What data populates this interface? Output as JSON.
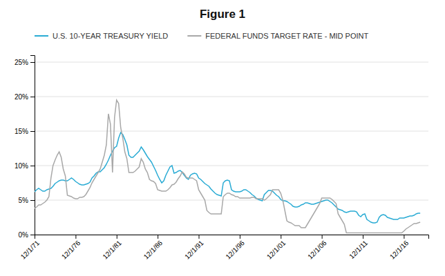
{
  "chart_data": {
    "type": "line",
    "title": "Figure 1",
    "x": [
      1971,
      1971.25,
      1971.5,
      1971.75,
      1972,
      1972.25,
      1972.5,
      1972.75,
      1973,
      1973.25,
      1973.5,
      1973.75,
      1974,
      1974.25,
      1974.5,
      1974.75,
      1975,
      1975.25,
      1975.5,
      1975.75,
      1976,
      1976.25,
      1976.5,
      1976.75,
      1977,
      1977.25,
      1977.5,
      1977.75,
      1978,
      1978.25,
      1978.5,
      1978.75,
      1979,
      1979.25,
      1979.5,
      1979.75,
      1980,
      1980.25,
      1980.5,
      1980.75,
      1981,
      1981.25,
      1981.5,
      1981.75,
      1982,
      1982.25,
      1982.5,
      1982.75,
      1983,
      1983.25,
      1983.5,
      1983.75,
      1984,
      1984.25,
      1984.5,
      1984.75,
      1985,
      1985.25,
      1985.5,
      1985.75,
      1986,
      1986.25,
      1986.5,
      1986.75,
      1987,
      1987.25,
      1987.5,
      1987.75,
      1988,
      1988.25,
      1988.5,
      1988.75,
      1989,
      1989.25,
      1989.5,
      1989.75,
      1990,
      1990.25,
      1990.5,
      1990.75,
      1991,
      1991.25,
      1991.5,
      1991.75,
      1992,
      1992.25,
      1992.5,
      1992.75,
      1993,
      1993.25,
      1993.5,
      1993.75,
      1994,
      1994.25,
      1994.5,
      1994.75,
      1995,
      1995.25,
      1995.5,
      1995.75,
      1996,
      1996.25,
      1996.5,
      1996.75,
      1997,
      1997.25,
      1997.5,
      1997.75,
      1998,
      1998.25,
      1998.5,
      1998.75,
      1999,
      1999.25,
      1999.5,
      1999.75,
      2000,
      2000.25,
      2000.5,
      2000.75,
      2001,
      2001.25,
      2001.5,
      2001.75,
      2002,
      2002.25,
      2002.5,
      2002.75,
      2003,
      2003.25,
      2003.5,
      2003.75,
      2004,
      2004.25,
      2004.5,
      2004.75,
      2005,
      2005.25,
      2005.5,
      2005.75,
      2006,
      2006.25,
      2006.5,
      2006.75,
      2007,
      2007.25,
      2007.5,
      2007.75,
      2008,
      2008.25,
      2008.5,
      2008.75,
      2009,
      2009.25,
      2009.5,
      2009.75,
      2010,
      2010.25,
      2010.5,
      2010.75,
      2011,
      2011.25,
      2011.5,
      2011.75,
      2012,
      2012.25,
      2012.5,
      2012.75,
      2013,
      2013.25,
      2013.5,
      2013.75,
      2014,
      2014.25,
      2014.5,
      2014.75,
      2015,
      2015.25,
      2015.5,
      2015.75,
      2016,
      2016.25,
      2016.5,
      2016.75,
      2017,
      2017.25,
      2017.5,
      2017.75,
      2018
    ],
    "xlim": [
      1971,
      2019
    ],
    "xticks": [
      {
        "value": 1971,
        "label": "12/1/71"
      },
      {
        "value": 1976,
        "label": "12/1/76"
      },
      {
        "value": 1981,
        "label": "12/1/81"
      },
      {
        "value": 1986,
        "label": "12/1/86"
      },
      {
        "value": 1991,
        "label": "12/1/91"
      },
      {
        "value": 1996,
        "label": "12/1/96"
      },
      {
        "value": 2001,
        "label": "12/1/01"
      },
      {
        "value": 2006,
        "label": "12/1/06"
      },
      {
        "value": 2011,
        "label": "12/1/11"
      },
      {
        "value": 2016,
        "label": "12/1/16"
      }
    ],
    "ylim": [
      0,
      0.26
    ],
    "yticks": [
      {
        "value": 0.0,
        "label": "0%"
      },
      {
        "value": 0.05,
        "label": "5%"
      },
      {
        "value": 0.1,
        "label": "10%"
      },
      {
        "value": 0.15,
        "label": "15%"
      },
      {
        "value": 0.2,
        "label": "20%"
      },
      {
        "value": 0.25,
        "label": "25%"
      }
    ],
    "grid": true,
    "legend": "top",
    "series": [
      {
        "name": "U.S. 10-YEAR TREASURY YIELD",
        "color": "#29ABD4",
        "values": [
          0.062,
          0.065,
          0.067,
          0.065,
          0.063,
          0.063,
          0.065,
          0.066,
          0.067,
          0.07,
          0.074,
          0.076,
          0.078,
          0.079,
          0.079,
          0.078,
          0.078,
          0.08,
          0.082,
          0.08,
          0.077,
          0.075,
          0.073,
          0.072,
          0.072,
          0.073,
          0.074,
          0.076,
          0.082,
          0.085,
          0.089,
          0.091,
          0.091,
          0.094,
          0.097,
          0.102,
          0.108,
          0.115,
          0.121,
          0.126,
          0.128,
          0.14,
          0.148,
          0.145,
          0.138,
          0.13,
          0.115,
          0.112,
          0.112,
          0.115,
          0.118,
          0.121,
          0.127,
          0.123,
          0.118,
          0.113,
          0.109,
          0.105,
          0.099,
          0.093,
          0.086,
          0.08,
          0.075,
          0.078,
          0.086,
          0.092,
          0.098,
          0.1,
          0.089,
          0.09,
          0.092,
          0.093,
          0.09,
          0.086,
          0.082,
          0.08,
          0.086,
          0.088,
          0.089,
          0.088,
          0.082,
          0.08,
          0.077,
          0.074,
          0.072,
          0.07,
          0.066,
          0.063,
          0.06,
          0.058,
          0.057,
          0.056,
          0.075,
          0.078,
          0.079,
          0.078,
          0.065,
          0.063,
          0.062,
          0.062,
          0.062,
          0.063,
          0.065,
          0.065,
          0.063,
          0.061,
          0.058,
          0.056,
          0.053,
          0.051,
          0.05,
          0.049,
          0.058,
          0.061,
          0.064,
          0.064,
          0.063,
          0.06,
          0.057,
          0.055,
          0.051,
          0.049,
          0.049,
          0.048,
          0.046,
          0.044,
          0.041,
          0.04,
          0.04,
          0.041,
          0.043,
          0.044,
          0.046,
          0.046,
          0.045,
          0.044,
          0.044,
          0.045,
          0.046,
          0.047,
          0.048,
          0.049,
          0.05,
          0.05,
          0.048,
          0.046,
          0.043,
          0.04,
          0.037,
          0.036,
          0.035,
          0.033,
          0.032,
          0.033,
          0.034,
          0.034,
          0.034,
          0.033,
          0.028,
          0.026,
          0.029,
          0.03,
          0.022,
          0.02,
          0.018,
          0.017,
          0.017,
          0.018,
          0.025,
          0.028,
          0.029,
          0.028,
          0.025,
          0.024,
          0.023,
          0.022,
          0.022,
          0.022,
          0.024,
          0.024,
          0.024,
          0.025,
          0.026,
          0.027,
          0.027,
          0.028,
          0.03,
          0.031,
          0.031
        ]
      },
      {
        "name": "FEDERAL FUNDS TARGET RATE - MID POINT",
        "color": "#A8A8A8",
        "values": [
          0.038,
          0.04,
          0.043,
          0.043,
          0.045,
          0.047,
          0.05,
          0.055,
          0.082,
          0.1,
          0.108,
          0.115,
          0.12,
          0.112,
          0.095,
          0.085,
          0.057,
          0.056,
          0.055,
          0.053,
          0.052,
          0.052,
          0.054,
          0.054,
          0.055,
          0.058,
          0.063,
          0.068,
          0.075,
          0.08,
          0.085,
          0.09,
          0.095,
          0.105,
          0.115,
          0.13,
          0.175,
          0.16,
          0.09,
          0.17,
          0.195,
          0.19,
          0.155,
          0.14,
          0.12,
          0.11,
          0.09,
          0.09,
          0.09,
          0.092,
          0.095,
          0.098,
          0.11,
          0.105,
          0.095,
          0.09,
          0.08,
          0.078,
          0.077,
          0.074,
          0.065,
          0.064,
          0.063,
          0.063,
          0.063,
          0.065,
          0.068,
          0.072,
          0.073,
          0.076,
          0.081,
          0.085,
          0.091,
          0.088,
          0.083,
          0.082,
          0.082,
          0.082,
          0.08,
          0.078,
          0.065,
          0.06,
          0.055,
          0.05,
          0.035,
          0.032,
          0.03,
          0.03,
          0.03,
          0.03,
          0.03,
          0.03,
          0.055,
          0.058,
          0.06,
          0.06,
          0.058,
          0.057,
          0.055,
          0.055,
          0.053,
          0.053,
          0.053,
          0.053,
          0.053,
          0.053,
          0.054,
          0.054,
          0.052,
          0.052,
          0.052,
          0.052,
          0.05,
          0.052,
          0.055,
          0.058,
          0.065,
          0.065,
          0.065,
          0.065,
          0.06,
          0.05,
          0.035,
          0.02,
          0.018,
          0.017,
          0.015,
          0.013,
          0.013,
          0.013,
          0.01,
          0.01,
          0.01,
          0.015,
          0.02,
          0.025,
          0.03,
          0.035,
          0.04,
          0.045,
          0.053,
          0.053,
          0.053,
          0.053,
          0.053,
          0.051,
          0.048,
          0.045,
          0.03,
          0.025,
          0.02,
          0.015,
          0.0025,
          0.0025,
          0.0025,
          0.0025,
          0.0025,
          0.0025,
          0.0025,
          0.0025,
          0.0025,
          0.0025,
          0.0025,
          0.0025,
          0.0025,
          0.0025,
          0.0025,
          0.0025,
          0.0025,
          0.0025,
          0.0025,
          0.0025,
          0.0025,
          0.0025,
          0.0025,
          0.0025,
          0.0025,
          0.0025,
          0.0025,
          0.0025,
          0.005,
          0.008,
          0.01,
          0.012,
          0.014,
          0.016,
          0.016,
          0.017,
          0.018
        ]
      }
    ]
  }
}
